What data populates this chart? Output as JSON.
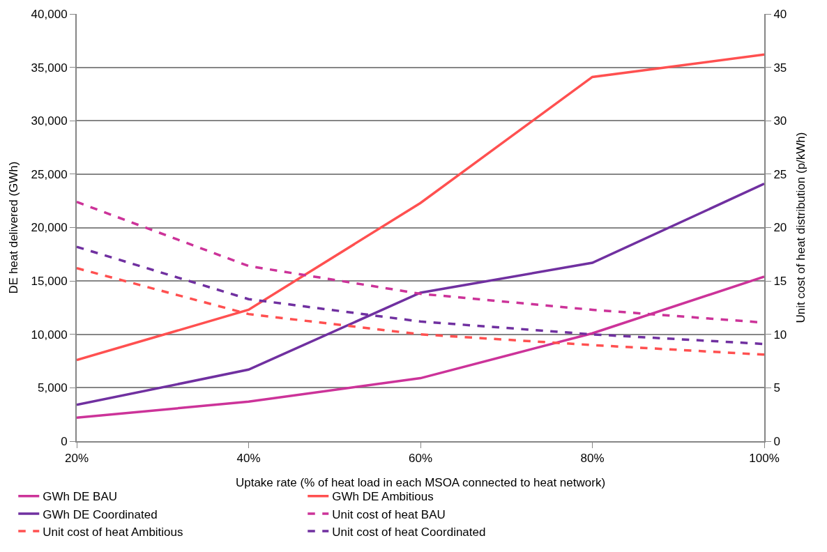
{
  "chart_data": {
    "type": "line",
    "xlabel": "Uptake rate (% of heat load in each MSOA connected to heat network)",
    "ylabel": "DE heat delivered (GWh)",
    "y2label": "Unit cost of heat distribution (p/kWh)",
    "x": [
      20,
      40,
      60,
      80,
      100
    ],
    "xlim": [
      20,
      100
    ],
    "xticks": [
      {
        "value": 20,
        "label": "20%"
      },
      {
        "value": 40,
        "label": "40%"
      },
      {
        "value": 60,
        "label": "60%"
      },
      {
        "value": 80,
        "label": "80%"
      },
      {
        "value": 100,
        "label": "100%"
      }
    ],
    "ylim": [
      0,
      40000
    ],
    "yticks": [
      {
        "value": 0,
        "label": "0"
      },
      {
        "value": 5000,
        "label": "5,000"
      },
      {
        "value": 10000,
        "label": "10,000"
      },
      {
        "value": 15000,
        "label": "15,000"
      },
      {
        "value": 20000,
        "label": "20,000"
      },
      {
        "value": 25000,
        "label": "25,000"
      },
      {
        "value": 30000,
        "label": "30,000"
      },
      {
        "value": 35000,
        "label": "35,000"
      },
      {
        "value": 40000,
        "label": "40,000"
      }
    ],
    "y2lim": [
      0,
      40
    ],
    "y2ticks": [
      0,
      5,
      10,
      15,
      20,
      25,
      30,
      35,
      40
    ],
    "grid": "y",
    "legend": "bottom",
    "series": [
      {
        "name": "GWh DE BAU",
        "color": "#cc3399",
        "line_style": "solid",
        "values": [
          2200,
          3700,
          5900,
          10100,
          15400
        ]
      },
      {
        "name": "GWh DE Ambitious",
        "color": "#ff5050",
        "line_style": "solid",
        "values": [
          7600,
          12300,
          22300,
          34100,
          36200
        ]
      },
      {
        "name": "GWh DE Coordinated",
        "color": "#7030a0",
        "line_style": "solid",
        "values": [
          3400,
          6700,
          13900,
          16700,
          24100
        ]
      },
      {
        "name": "Unit cost of heat BAU",
        "color": "#cc3399",
        "line_style": "dashed",
        "axis": "y2",
        "values": [
          22.4,
          16.4,
          13.8,
          12.3,
          11.1
        ]
      },
      {
        "name": "Unit cost of heat Ambitious",
        "color": "#ff5050",
        "line_style": "dashed",
        "axis": "y2",
        "values": [
          16.2,
          11.9,
          10.0,
          9.0,
          8.1
        ]
      },
      {
        "name": "Unit cost of heat Coordinated",
        "color": "#7030a0",
        "line_style": "dashed",
        "axis": "y2",
        "values": [
          18.2,
          13.3,
          11.2,
          10.0,
          9.1
        ]
      }
    ]
  }
}
